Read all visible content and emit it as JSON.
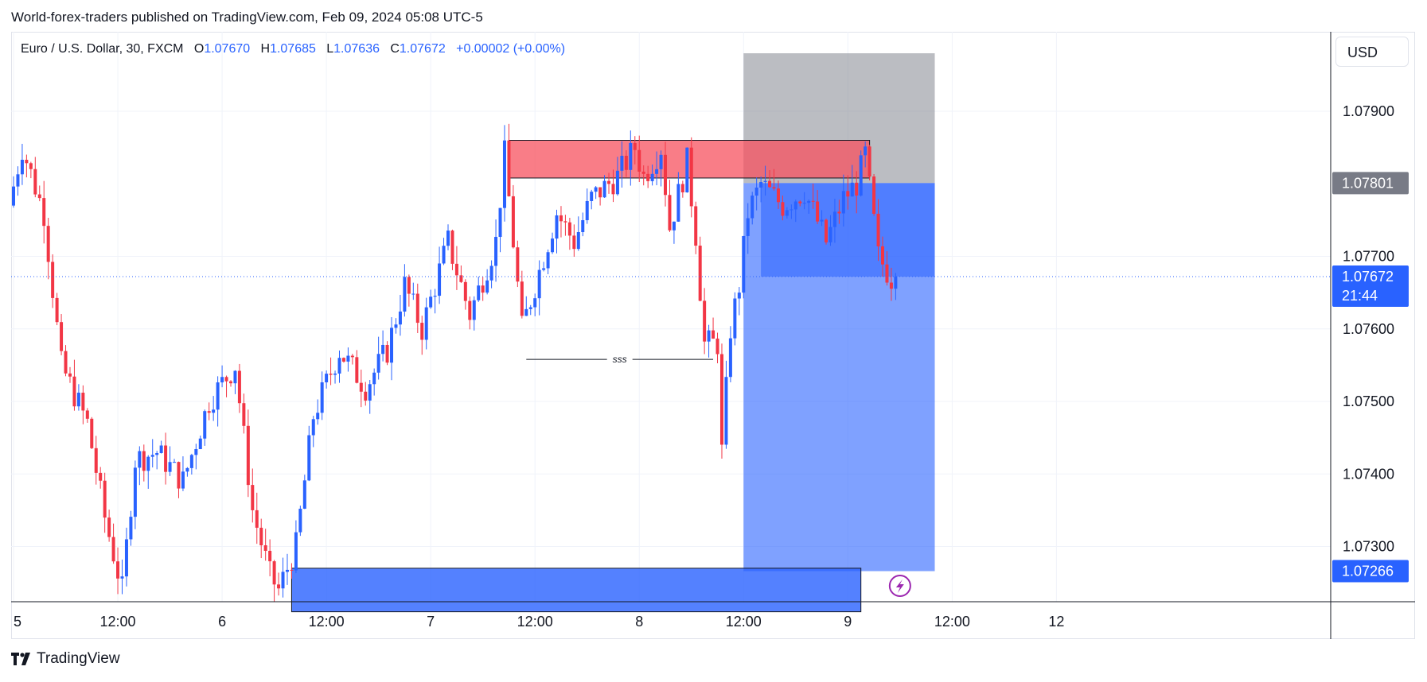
{
  "header": {
    "publish_line": "World-forex-traders published on TradingView.com, Feb 09, 2024 05:08 UTC-5"
  },
  "legend": {
    "symbol": "Euro / U.S. Dollar, 30, FXCM",
    "o_label": "O",
    "o_value": "1.07670",
    "h_label": "H",
    "h_value": "1.07685",
    "l_label": "L",
    "l_value": "1.07636",
    "c_label": "C",
    "c_value": "1.07672",
    "change": "+0.00002 (+0.00%)"
  },
  "currency_button": "USD",
  "brand": "TradingView",
  "colors": {
    "up": "#2962ff",
    "down": "#f23645",
    "supply_zone": "#f7525f",
    "demand_zone": "#2962ff",
    "target_zone": "#2962ff",
    "stop_zone": "#787b86",
    "stop_badge": "#787b86",
    "price_badge": "#2962ff"
  },
  "icons": {
    "alert": "lightning-bolt-icon",
    "logo": "tradingview-logo-icon"
  },
  "chart_data": {
    "type": "candlestick",
    "symbol": "EURUSD",
    "timeframe": "30",
    "ylim": [
      1.0718,
      1.0798
    ],
    "xlim": [
      0,
      330
    ],
    "y_ticks": [
      "1.07900",
      "1.07700",
      "1.07600",
      "1.07500",
      "1.07400",
      "1.07300"
    ],
    "y_tick_values": [
      1.079,
      1.077,
      1.076,
      1.075,
      1.074,
      1.073
    ],
    "x_ticks": [
      {
        "label": "5",
        "t": 0
      },
      {
        "label": "12:00",
        "t": 24
      },
      {
        "label": "6",
        "t": 48
      },
      {
        "label": "12:00",
        "t": 72
      },
      {
        "label": "7",
        "t": 96
      },
      {
        "label": "12:00",
        "t": 120
      },
      {
        "label": "8",
        "t": 144
      },
      {
        "label": "12:00",
        "t": 168
      },
      {
        "label": "9",
        "t": 192
      },
      {
        "label": "12:00",
        "t": 216
      },
      {
        "label": "12",
        "t": 240
      }
    ],
    "last_price": {
      "value": 1.07672,
      "label": "1.07672",
      "countdown": "21:44"
    },
    "stop_level": {
      "value": 1.07801,
      "label": "1.07801"
    },
    "target_level": {
      "value": 1.07266,
      "label": "1.07266"
    },
    "zones": [
      {
        "name": "supply-zone",
        "t0": 114,
        "t1": 197,
        "y0": 1.07808,
        "y1": 1.0786
      },
      {
        "name": "demand-zone",
        "t0": 64,
        "t1": 195,
        "y0": 1.0721,
        "y1": 1.0727
      }
    ],
    "position": {
      "type": "short",
      "t0": 168,
      "t1": 212,
      "entry": 1.07801,
      "stop": 1.0798,
      "target": 1.07266,
      "current": 1.07672,
      "current_t0": 172,
      "current_t1": 212
    },
    "ssl_line": {
      "t0": 118,
      "t1": 161,
      "y": 1.07558,
      "label": "sss"
    },
    "key_points": [
      [
        0,
        1.0777
      ],
      [
        3,
        1.0785
      ],
      [
        8,
        1.0776
      ],
      [
        12,
        1.0755
      ],
      [
        18,
        1.0747
      ],
      [
        22,
        1.0734
      ],
      [
        26,
        1.0724
      ],
      [
        29,
        1.0742
      ],
      [
        34,
        1.0743
      ],
      [
        40,
        1.0739
      ],
      [
        46,
        1.075
      ],
      [
        52,
        1.0755
      ],
      [
        56,
        1.0735
      ],
      [
        60,
        1.0726
      ],
      [
        62,
        1.0724
      ],
      [
        66,
        1.073
      ],
      [
        70,
        1.0748
      ],
      [
        76,
        1.0757
      ],
      [
        82,
        1.0752
      ],
      [
        87,
        1.0757
      ],
      [
        91,
        1.0766
      ],
      [
        95,
        1.076
      ],
      [
        101,
        1.0772
      ],
      [
        106,
        1.0762
      ],
      [
        112,
        1.0772
      ],
      [
        114,
        1.0784
      ],
      [
        118,
        1.076
      ],
      [
        122,
        1.0768
      ],
      [
        126,
        1.0776
      ],
      [
        130,
        1.0772
      ],
      [
        134,
        1.0778
      ],
      [
        140,
        1.0781
      ],
      [
        144,
        1.0785
      ],
      [
        146,
        1.0781
      ],
      [
        150,
        1.0785
      ],
      [
        152,
        1.0774
      ],
      [
        156,
        1.0783
      ],
      [
        158,
        1.0773
      ],
      [
        160,
        1.0758
      ],
      [
        163,
        1.0758
      ],
      [
        164,
        1.0743
      ],
      [
        166,
        1.076
      ],
      [
        168,
        1.0766
      ],
      [
        170,
        1.0776
      ],
      [
        173,
        1.078
      ],
      [
        178,
        1.0777
      ],
      [
        183,
        1.0779
      ],
      [
        188,
        1.0772
      ],
      [
        192,
        1.0778
      ],
      [
        195,
        1.078
      ],
      [
        197,
        1.0784
      ],
      [
        200,
        1.077
      ],
      [
        203,
        1.0767
      ]
    ]
  }
}
